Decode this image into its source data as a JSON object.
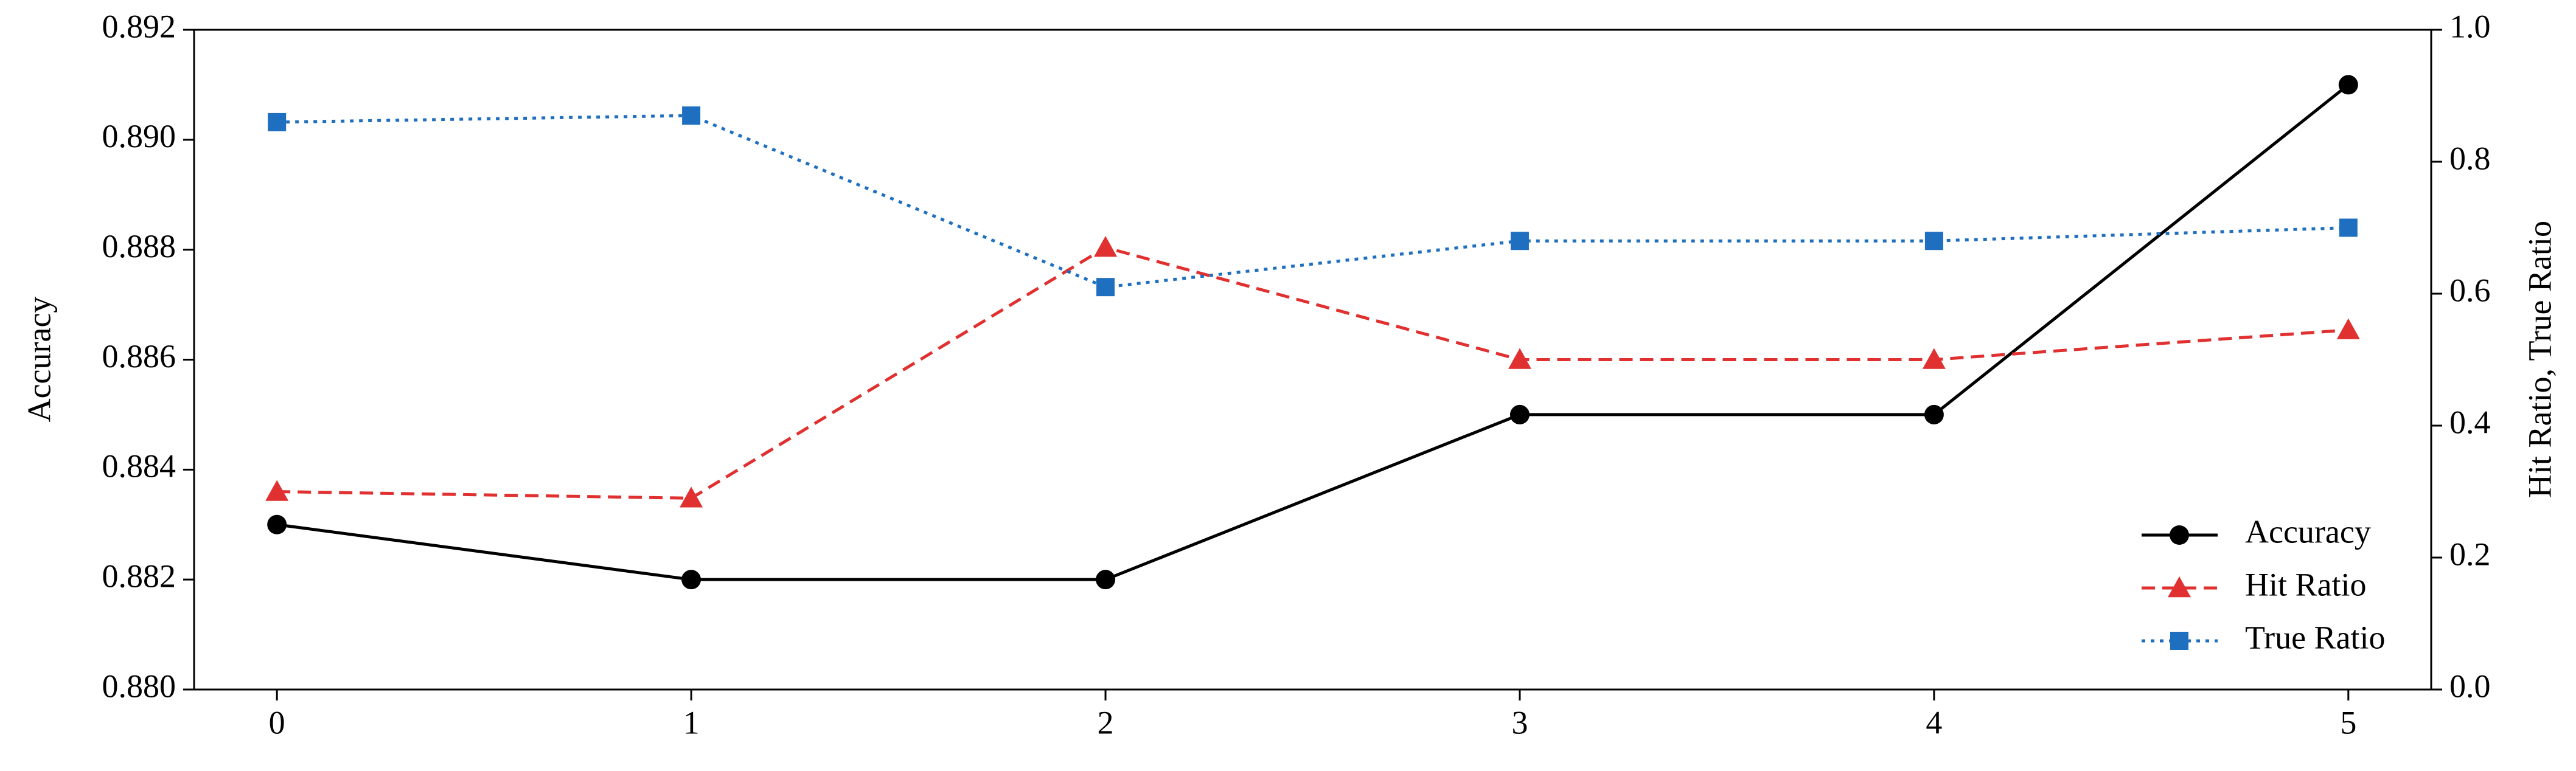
{
  "chart_data": {
    "type": "line",
    "x": [
      0,
      1,
      2,
      3,
      4,
      5
    ],
    "xlim": [
      -0.2,
      5.2
    ],
    "xticks": [
      0,
      1,
      2,
      3,
      4,
      5
    ],
    "ylabel": "Accuracy",
    "y2label": "Hit Ratio, True Ratio",
    "ylim": [
      0.88,
      0.892
    ],
    "yticks": [
      {
        "value": 0.88,
        "label": "0.880"
      },
      0.882,
      0.884,
      0.886,
      0.888,
      {
        "value": 0.89,
        "label": "0.890"
      },
      0.892
    ],
    "y2lim": [
      0,
      1
    ],
    "y2ticks": [
      {
        "value": 0,
        "label": "0.0"
      },
      0.2,
      0.4,
      0.6,
      0.8,
      {
        "value": 1,
        "label": "1.0"
      }
    ],
    "grid": false,
    "legend": "lower right",
    "series": [
      {
        "name": "Accuracy",
        "color": "#000000",
        "marker": "circle",
        "linestyle": "solid",
        "values": [
          0.883,
          0.882,
          0.882,
          0.885,
          0.885,
          0.891
        ]
      },
      {
        "name": "Hit Ratio",
        "color": "#e03030",
        "marker": "triangle",
        "linestyle": "dashed",
        "axis": "y2",
        "values": [
          0.3,
          0.29,
          0.67,
          0.5,
          0.5,
          0.545
        ]
      },
      {
        "name": "True Ratio",
        "color": "#1f6fc0",
        "marker": "square",
        "linestyle": "dotted",
        "axis": "y2",
        "values": [
          0.86,
          0.87,
          0.61,
          0.68,
          0.68,
          0.7
        ]
      }
    ]
  }
}
